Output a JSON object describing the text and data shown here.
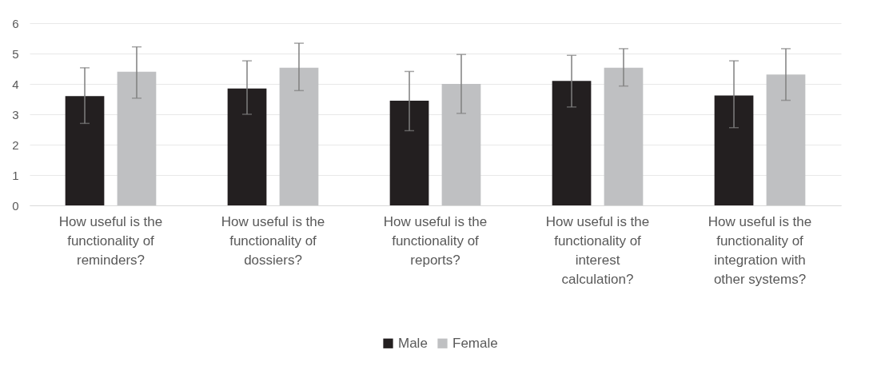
{
  "chart_data": {
    "type": "bar",
    "categories": [
      "How useful is the functionality of reminders?",
      "How useful is the functionality of dossiers?",
      "How useful is the functionality of reports?",
      "How useful is the functionality of interest calculation?",
      "How useful is the functionality of integration with other systems?"
    ],
    "series": [
      {
        "name": "Male",
        "color": "#231f20",
        "values": [
          3.6,
          3.85,
          3.45,
          4.1,
          3.62
        ],
        "errors": [
          [
            2.7,
            4.53
          ],
          [
            3.0,
            4.76
          ],
          [
            2.46,
            4.41
          ],
          [
            3.24,
            4.94
          ],
          [
            2.56,
            4.76
          ]
        ]
      },
      {
        "name": "Female",
        "color": "#bfc0c2",
        "values": [
          4.4,
          4.53,
          4.0,
          4.53,
          4.31
        ],
        "errors": [
          [
            3.53,
            5.22
          ],
          [
            3.78,
            5.34
          ],
          [
            3.03,
            4.97
          ],
          [
            3.93,
            5.16
          ],
          [
            3.46,
            5.16
          ]
        ]
      }
    ],
    "ylim": [
      0,
      6
    ],
    "yticks": [
      0,
      1,
      2,
      3,
      4,
      5,
      6
    ],
    "grid": "y",
    "legend": "bottom"
  }
}
